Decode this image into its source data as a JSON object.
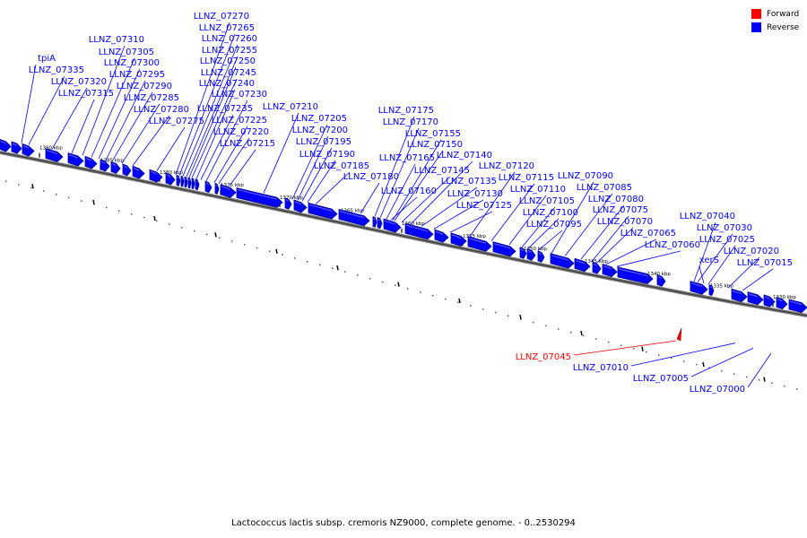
{
  "caption": "Lactococcus lactis subsp. cremoris NZ9000, complete genome. - 0..2530294",
  "legend": [
    {
      "label": "Forward",
      "color": "#ff0000"
    },
    {
      "label": "Reverse",
      "color": "#0000ff"
    }
  ],
  "colors": {
    "forward": "#ff0000",
    "reverse": "#0000ff",
    "reverse_dark": "#00008b",
    "backbone": "#777777",
    "tick": "#000000"
  },
  "ticks": [
    "1390 kbp",
    "1385 kbp",
    "1380 kbp",
    "1375 kbp",
    "1370 kbp",
    "1365 kbp",
    "1360 kbp",
    "1355 kbp",
    "1350 kbp",
    "1345 kbp",
    "1340 kbp",
    "1335 kbp",
    "1330 kbp"
  ],
  "genes": [
    {
      "label": "tpiA",
      "strand": "reverse"
    },
    {
      "label": "LLNZ_07335",
      "strand": "reverse"
    },
    {
      "label": "LLNZ_07320",
      "strand": "reverse"
    },
    {
      "label": "LLNZ_07315",
      "strand": "reverse"
    },
    {
      "label": "LLNZ_07310",
      "strand": "reverse"
    },
    {
      "label": "LLNZ_07305",
      "strand": "reverse"
    },
    {
      "label": "LLNZ_07300",
      "strand": "reverse"
    },
    {
      "label": "LLNZ_07295",
      "strand": "reverse"
    },
    {
      "label": "LLNZ_07290",
      "strand": "reverse"
    },
    {
      "label": "LLNZ_07285",
      "strand": "reverse"
    },
    {
      "label": "LLNZ_07280",
      "strand": "reverse"
    },
    {
      "label": "LLNZ_07275",
      "strand": "reverse"
    },
    {
      "label": "LLNZ_07270",
      "strand": "reverse"
    },
    {
      "label": "LLNZ_07265",
      "strand": "reverse"
    },
    {
      "label": "LLNZ_07260",
      "strand": "reverse"
    },
    {
      "label": "LLNZ_07255",
      "strand": "reverse"
    },
    {
      "label": "LLNZ_07250",
      "strand": "reverse"
    },
    {
      "label": "LLNZ_07245",
      "strand": "reverse"
    },
    {
      "label": "LLNZ_07240",
      "strand": "reverse"
    },
    {
      "label": "LLNZ_07235",
      "strand": "reverse"
    },
    {
      "label": "LLNZ_07230",
      "strand": "reverse"
    },
    {
      "label": "LLNZ_07225",
      "strand": "reverse"
    },
    {
      "label": "LLNZ_07220",
      "strand": "reverse"
    },
    {
      "label": "LLNZ_07215",
      "strand": "reverse"
    },
    {
      "label": "LLNZ_07210",
      "strand": "reverse"
    },
    {
      "label": "LLNZ_07205",
      "strand": "reverse"
    },
    {
      "label": "LLNZ_07200",
      "strand": "reverse"
    },
    {
      "label": "LLNZ_07195",
      "strand": "reverse"
    },
    {
      "label": "LLNZ_07190",
      "strand": "reverse"
    },
    {
      "label": "LLNZ_07185",
      "strand": "reverse"
    },
    {
      "label": "LLNZ_07180",
      "strand": "reverse"
    },
    {
      "label": "LLNZ_07175",
      "strand": "reverse"
    },
    {
      "label": "LLNZ_07170",
      "strand": "reverse"
    },
    {
      "label": "LLNZ_07165",
      "strand": "reverse"
    },
    {
      "label": "LLNZ_07160",
      "strand": "reverse"
    },
    {
      "label": "LLNZ_07155",
      "strand": "reverse"
    },
    {
      "label": "LLNZ_07150",
      "strand": "reverse"
    },
    {
      "label": "LLNZ_07145",
      "strand": "reverse"
    },
    {
      "label": "LLNZ_07140",
      "strand": "reverse"
    },
    {
      "label": "LLNZ_07135",
      "strand": "reverse"
    },
    {
      "label": "LLNZ_07130",
      "strand": "reverse"
    },
    {
      "label": "LLNZ_07125",
      "strand": "reverse"
    },
    {
      "label": "LLNZ_07120",
      "strand": "reverse"
    },
    {
      "label": "LLNZ_07115",
      "strand": "reverse"
    },
    {
      "label": "LLNZ_07110",
      "strand": "reverse"
    },
    {
      "label": "LLNZ_07105",
      "strand": "reverse"
    },
    {
      "label": "LLNZ_07100",
      "strand": "reverse"
    },
    {
      "label": "LLNZ_07095",
      "strand": "reverse"
    },
    {
      "label": "LLNZ_07090",
      "strand": "reverse"
    },
    {
      "label": "LLNZ_07085",
      "strand": "reverse"
    },
    {
      "label": "LLNZ_07080",
      "strand": "reverse"
    },
    {
      "label": "LLNZ_07075",
      "strand": "reverse"
    },
    {
      "label": "LLNZ_07070",
      "strand": "reverse"
    },
    {
      "label": "LLNZ_07065",
      "strand": "reverse"
    },
    {
      "label": "LLNZ_07060",
      "strand": "reverse"
    },
    {
      "label": "LLNZ_07040",
      "strand": "reverse"
    },
    {
      "label": "LLNZ_07030",
      "strand": "reverse"
    },
    {
      "label": "xerS",
      "strand": "reverse"
    },
    {
      "label": "LLNZ_07025",
      "strand": "reverse"
    },
    {
      "label": "LLNZ_07020",
      "strand": "reverse"
    },
    {
      "label": "LLNZ_07015",
      "strand": "reverse"
    },
    {
      "label": "LLNZ_07045",
      "strand": "forward"
    },
    {
      "label": "LLNZ_07010",
      "strand": "reverse"
    },
    {
      "label": "LLNZ_07005",
      "strand": "reverse"
    },
    {
      "label": "LLNZ_07000",
      "strand": "reverse"
    }
  ]
}
